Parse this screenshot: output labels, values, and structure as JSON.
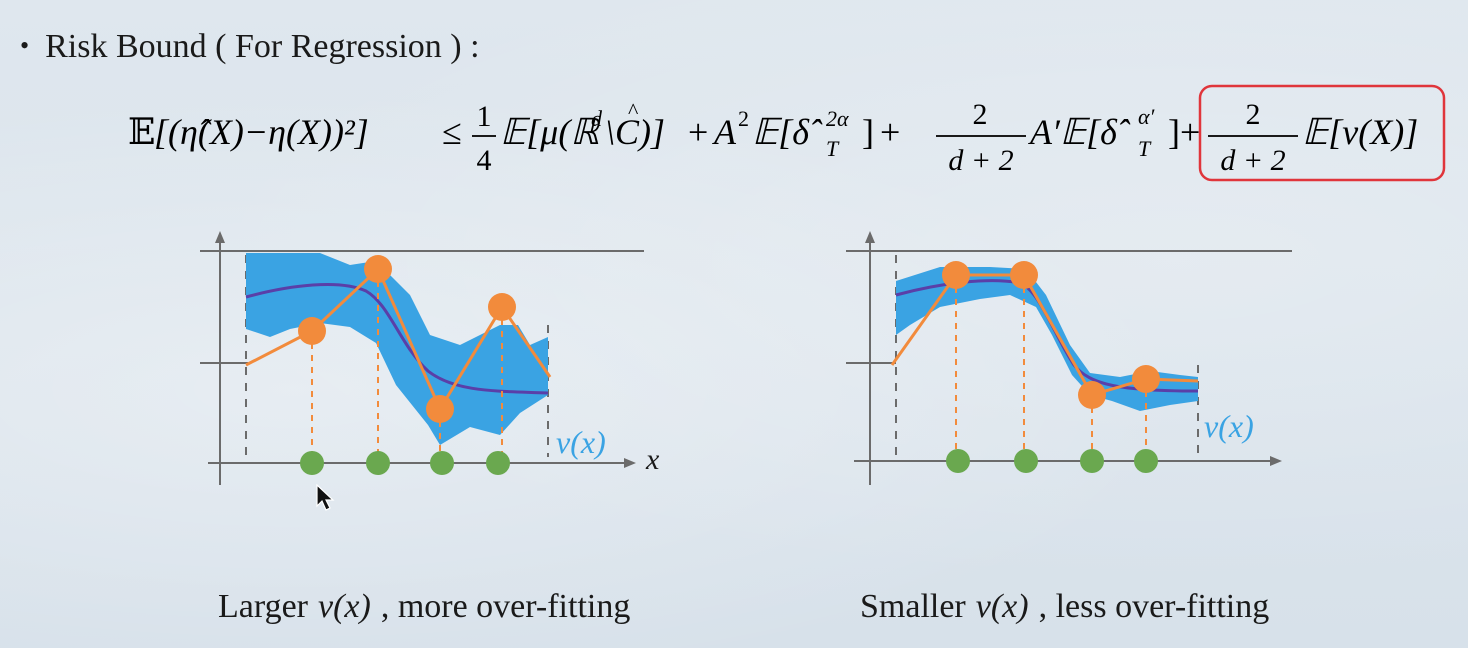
{
  "bullet": {
    "title": "Risk Bound ( For Regression ) :"
  },
  "equation": {
    "lhs_E": "𝔼",
    "lhs_body": "[(η̂(X)−η(X))²]",
    "leq": "≤",
    "frac1_num": "1",
    "frac1_den": "4",
    "term1": "𝔼[μ(ℝ",
    "term1_sup": "d",
    "term1_rest": "\\C)]",
    "plus1": "+",
    "term2_A": "A",
    "term2_sup": "2",
    "term2_E": "𝔼[δ̂",
    "term2_sub": "T",
    "term2_sup2": "2α",
    "term2_close": "]",
    "plus2": "+",
    "frac2_num": "2",
    "frac2_den": "d + 2",
    "term3_A": "A′𝔼[δ̂",
    "term3_sub": "T",
    "term3_sup": "α′",
    "term3_close": "]",
    "plus3": "+",
    "frac3_num": "2",
    "frac3_den": "d + 2",
    "term4": "𝔼[v(X)]",
    "highlight_color": "#e0353b"
  },
  "plots": {
    "left": {
      "vx_label": "v(x)",
      "x_label": "x"
    },
    "right": {
      "vx_label": "v(x)"
    }
  },
  "captions": {
    "left_prefix": "Larger",
    "left_vx": "v(x)",
    "left_suffix": ", more over-fitting",
    "right_prefix": "Smaller",
    "right_vx": "v(x)",
    "right_suffix": ", less over-fitting"
  },
  "colors": {
    "band": "#3aa3e3",
    "curve": "#5a3fa8",
    "orange": "#f28b3c",
    "green": "#6aa84f",
    "axis": "#6b6b6b"
  }
}
